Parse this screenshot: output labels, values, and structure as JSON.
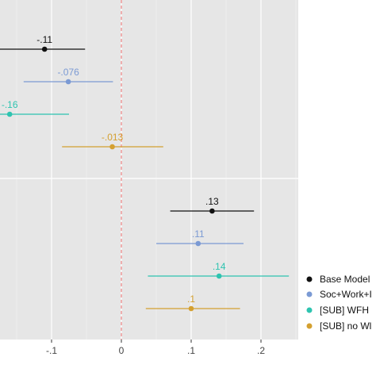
{
  "chart_data": {
    "type": "scatter",
    "subtype": "coefficient-plot",
    "title": "",
    "xlabel": "",
    "ylabel": "",
    "xlim": [
      -0.175,
      0.25
    ],
    "x_ticks": [
      {
        "value": -0.1,
        "label": "-.1"
      },
      {
        "value": 0,
        "label": "0"
      },
      {
        "value": 0.1,
        "label": ".1"
      },
      {
        "value": 0.2,
        "label": ".2"
      }
    ],
    "reference_line": {
      "x": 0,
      "style": "dashed",
      "color": "#f07070"
    },
    "grid": true,
    "legend_position": "right",
    "series": [
      {
        "name": "Base Model",
        "color": "#111111",
        "points": [
          {
            "group": 1,
            "estimate": -0.11,
            "lower": -0.175,
            "upper": -0.052,
            "label": "-.11"
          },
          {
            "group": 2,
            "estimate": 0.13,
            "lower": 0.07,
            "upper": 0.19,
            "label": ".13"
          }
        ]
      },
      {
        "name": "Soc+Work+I",
        "color": "#7b9ad4",
        "points": [
          {
            "group": 1,
            "estimate": -0.076,
            "lower": -0.14,
            "upper": -0.012,
            "label": "-.076"
          },
          {
            "group": 2,
            "estimate": 0.11,
            "lower": 0.05,
            "upper": 0.175,
            "label": ".11"
          }
        ]
      },
      {
        "name": "[SUB] WFH",
        "color": "#2ec4b0",
        "points": [
          {
            "group": 1,
            "estimate": -0.16,
            "lower": -0.175,
            "upper": -0.075,
            "label": "-.16"
          },
          {
            "group": 2,
            "estimate": 0.14,
            "lower": 0.038,
            "upper": 0.24,
            "label": ".14"
          }
        ]
      },
      {
        "name": "[SUB] no Wl",
        "color": "#d4a030",
        "points": [
          {
            "group": 1,
            "estimate": -0.013,
            "lower": -0.085,
            "upper": 0.06,
            "label": "-.013"
          },
          {
            "group": 2,
            "estimate": 0.1,
            "lower": 0.035,
            "upper": 0.17,
            "label": ".1"
          }
        ]
      }
    ]
  }
}
